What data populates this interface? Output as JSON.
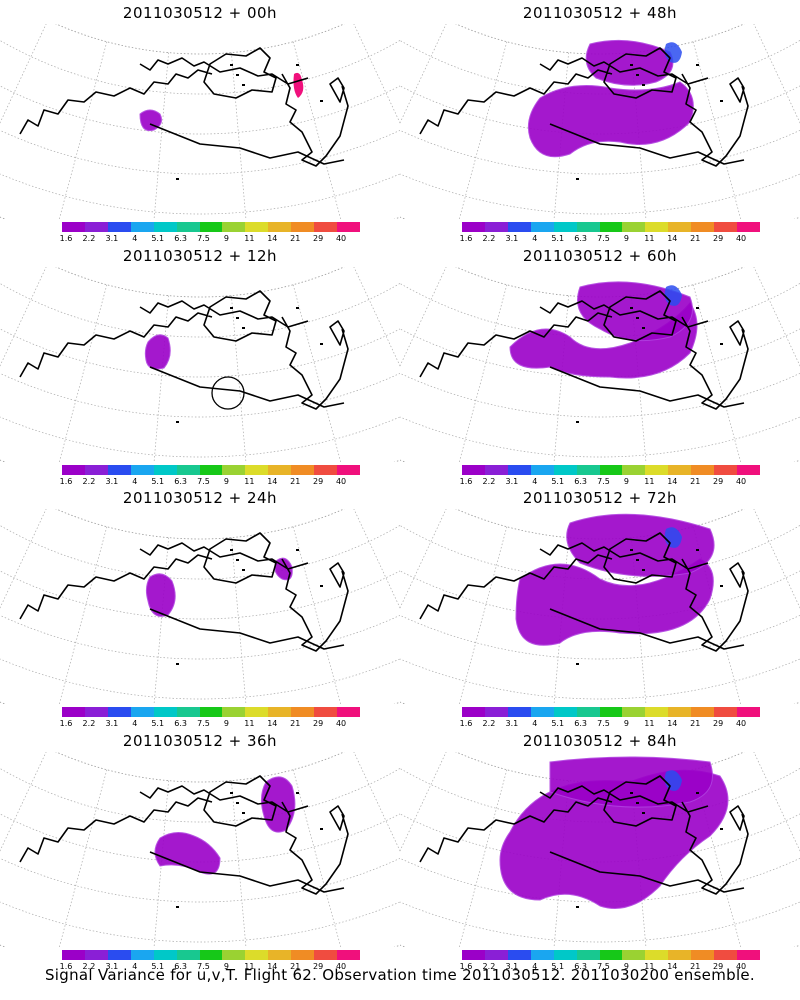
{
  "colors": [
    "#9b00c8",
    "#8a1fd6",
    "#2a4cf0",
    "#1aa6f0",
    "#00c8c8",
    "#18c890",
    "#16c818",
    "#9ad232",
    "#dcdc2a",
    "#e8b428",
    "#f08c24",
    "#f04c40",
    "#f0107c"
  ],
  "colorbar_labels": [
    "1.6",
    "2.2",
    "3.1",
    "4",
    "5.1",
    "6.3",
    "7.5",
    "9",
    "11",
    "14",
    "21",
    "29",
    "40"
  ],
  "panels": [
    {
      "title": "2011030512 + 00h"
    },
    {
      "title": "2011030512 + 48h"
    },
    {
      "title": "2011030512 + 12h"
    },
    {
      "title": "2011030512 + 60h"
    },
    {
      "title": "2011030512 + 24h"
    },
    {
      "title": "2011030512 + 72h"
    },
    {
      "title": "2011030512 + 36h"
    },
    {
      "title": "2011030512 + 84h"
    }
  ],
  "footer": "Signal Variance for u,v,T. Flight 62. Observation time 2011030512. 2011030200 ensemble."
}
